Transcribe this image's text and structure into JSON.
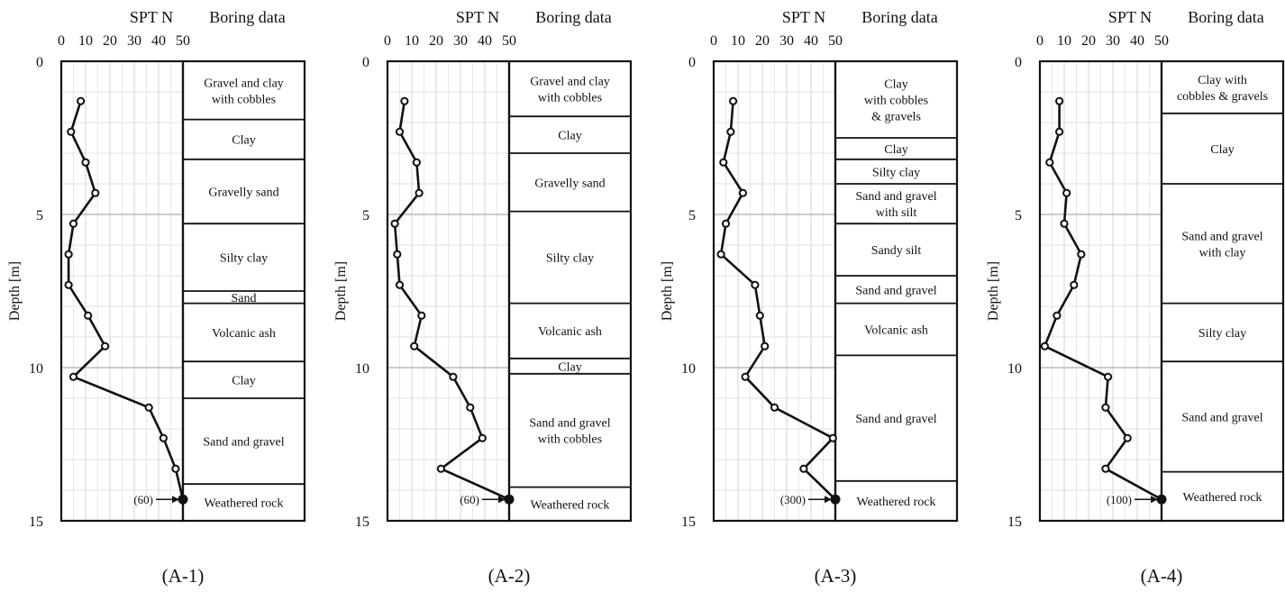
{
  "chart_data": [
    {
      "type": "line",
      "caption": "(A-1)",
      "title": "SPT N",
      "boring_title": "Boring data",
      "xlabel": "SPT N",
      "ylabel": "Depth [m]",
      "xlim": [
        0,
        50
      ],
      "ylim": [
        0,
        15
      ],
      "x_ticks": [
        0,
        10,
        20,
        30,
        40,
        50
      ],
      "y_ticks": [
        0,
        5,
        10,
        15
      ],
      "grid": true,
      "series": [
        {
          "n": [
            8,
            4,
            10,
            14,
            5,
            3,
            3,
            11,
            18,
            5,
            36,
            42,
            47,
            50
          ],
          "depth": [
            1.3,
            2.3,
            3.3,
            4.3,
            5.3,
            6.3,
            7.3,
            8.3,
            9.3,
            10.3,
            11.3,
            12.3,
            13.3,
            14.3
          ]
        }
      ],
      "annotation": {
        "text": "(60)",
        "depth": 14.3
      },
      "layers": [
        {
          "label": "Gravel and clay\nwith cobbles",
          "top": 0,
          "bottom": 1.9
        },
        {
          "label": "Clay",
          "top": 1.9,
          "bottom": 3.2
        },
        {
          "label": "Gravelly sand",
          "top": 3.2,
          "bottom": 5.3
        },
        {
          "label": "Silty clay",
          "top": 5.3,
          "bottom": 7.5
        },
        {
          "label": "Sand",
          "top": 7.5,
          "bottom": 7.9
        },
        {
          "label": "Volcanic ash",
          "top": 7.9,
          "bottom": 9.8
        },
        {
          "label": "Clay",
          "top": 9.8,
          "bottom": 11.0
        },
        {
          "label": "Sand and gravel",
          "top": 11.0,
          "bottom": 13.8
        },
        {
          "label": "Weathered rock",
          "top": 13.8,
          "bottom": 15.0
        }
      ]
    },
    {
      "type": "line",
      "caption": "(A-2)",
      "title": "SPT N",
      "boring_title": "Boring data",
      "xlabel": "SPT N",
      "ylabel": "Depth [m]",
      "xlim": [
        0,
        50
      ],
      "ylim": [
        0,
        15
      ],
      "x_ticks": [
        0,
        10,
        20,
        30,
        40,
        50
      ],
      "y_ticks": [
        0,
        5,
        10,
        15
      ],
      "grid": true,
      "series": [
        {
          "n": [
            7,
            5,
            12,
            13,
            3,
            4,
            5,
            14,
            11,
            27,
            34,
            39,
            22,
            50
          ],
          "depth": [
            1.3,
            2.3,
            3.3,
            4.3,
            5.3,
            6.3,
            7.3,
            8.3,
            9.3,
            10.3,
            11.3,
            12.3,
            13.3,
            14.3
          ]
        }
      ],
      "annotation": {
        "text": "(60)",
        "depth": 14.3
      },
      "layers": [
        {
          "label": "Gravel and clay\nwith cobbles",
          "top": 0,
          "bottom": 1.8
        },
        {
          "label": "Clay",
          "top": 1.8,
          "bottom": 3.0
        },
        {
          "label": "Gravelly sand",
          "top": 3.0,
          "bottom": 4.9
        },
        {
          "label": "Silty clay",
          "top": 4.9,
          "bottom": 7.9
        },
        {
          "label": "Volcanic ash",
          "top": 7.9,
          "bottom": 9.7
        },
        {
          "label": "Clay",
          "top": 9.7,
          "bottom": 10.2
        },
        {
          "label": "Sand and gravel\nwith cobbles",
          "top": 10.2,
          "bottom": 13.9
        },
        {
          "label": "Weathered rock",
          "top": 13.9,
          "bottom": 15.0
        }
      ]
    },
    {
      "type": "line",
      "caption": "(A-3)",
      "title": "SPT N",
      "boring_title": "Boring data",
      "xlabel": "SPT N",
      "ylabel": "Depth [m]",
      "xlim": [
        0,
        50
      ],
      "ylim": [
        0,
        15
      ],
      "x_ticks": [
        0,
        10,
        20,
        30,
        40,
        50
      ],
      "y_ticks": [
        0,
        5,
        10,
        15
      ],
      "grid": true,
      "series": [
        {
          "n": [
            8,
            7,
            4,
            12,
            5,
            3,
            17,
            19,
            21,
            13,
            25,
            49,
            37,
            50
          ],
          "depth": [
            1.3,
            2.3,
            3.3,
            4.3,
            5.3,
            6.3,
            7.3,
            8.3,
            9.3,
            10.3,
            11.3,
            12.3,
            13.3,
            14.3
          ]
        }
      ],
      "annotation": {
        "text": "(300)",
        "depth": 14.3
      },
      "layers": [
        {
          "label": "Clay\nwith cobbles\n& gravels",
          "top": 0,
          "bottom": 2.5
        },
        {
          "label": "Clay",
          "top": 2.5,
          "bottom": 3.2
        },
        {
          "label": "Silty clay",
          "top": 3.2,
          "bottom": 4.0
        },
        {
          "label": "Sand and gravel\nwith silt",
          "top": 4.0,
          "bottom": 5.3
        },
        {
          "label": "Sandy silt",
          "top": 5.3,
          "bottom": 7.0
        },
        {
          "label": "Sand and gravel",
          "top": 7.0,
          "bottom": 7.9
        },
        {
          "label": "Volcanic ash",
          "top": 7.9,
          "bottom": 9.6
        },
        {
          "label": "Sand and gravel",
          "top": 9.6,
          "bottom": 13.7
        },
        {
          "label": "Weathered rock",
          "top": 13.7,
          "bottom": 15.0
        }
      ]
    },
    {
      "type": "line",
      "caption": "(A-4)",
      "title": "SPT N",
      "boring_title": "Boring data",
      "xlabel": "SPT N",
      "ylabel": "Depth [m]",
      "xlim": [
        0,
        50
      ],
      "ylim": [
        0,
        15
      ],
      "x_ticks": [
        0,
        10,
        20,
        30,
        40,
        50
      ],
      "y_ticks": [
        0,
        5,
        10,
        15
      ],
      "grid": true,
      "series": [
        {
          "n": [
            8,
            8,
            4,
            11,
            10,
            17,
            14,
            7,
            2,
            28,
            27,
            36,
            27,
            50
          ],
          "depth": [
            1.3,
            2.3,
            3.3,
            4.3,
            5.3,
            6.3,
            7.3,
            8.3,
            9.3,
            10.3,
            11.3,
            12.3,
            13.3,
            14.3
          ]
        }
      ],
      "annotation": {
        "text": "(100)",
        "depth": 14.3
      },
      "layers": [
        {
          "label": "Clay with\ncobbles & gravels",
          "top": 0,
          "bottom": 1.7
        },
        {
          "label": "Clay",
          "top": 1.7,
          "bottom": 4.0
        },
        {
          "label": "Sand and gravel\nwith clay",
          "top": 4.0,
          "bottom": 7.9
        },
        {
          "label": "Silty clay",
          "top": 7.9,
          "bottom": 9.8
        },
        {
          "label": "Sand and gravel",
          "top": 9.8,
          "bottom": 13.4
        },
        {
          "label": "Weathered rock",
          "top": 13.4,
          "bottom": 15.0
        }
      ]
    }
  ]
}
